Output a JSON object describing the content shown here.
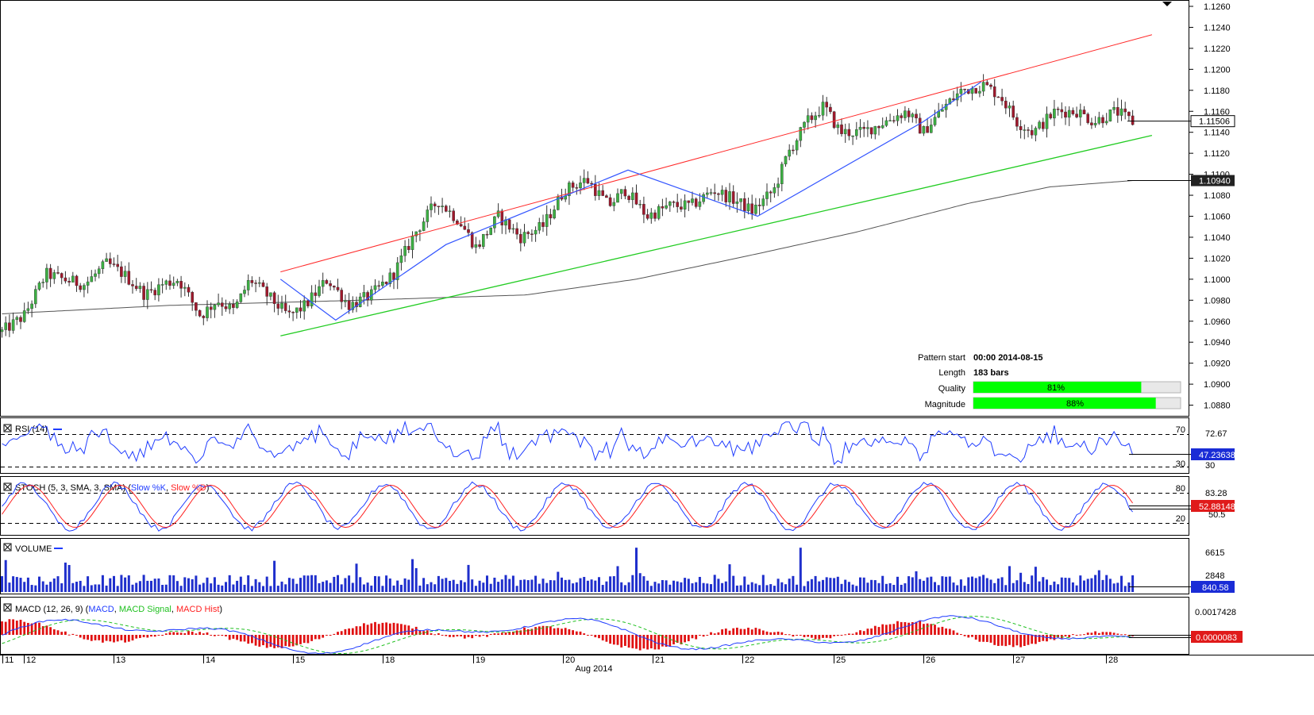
{
  "chart_data": {
    "type": "candlestick",
    "main_panel": {
      "y_ticks": [
        "1.1260",
        "1.1240",
        "1.1220",
        "1.1200",
        "1.1180",
        "1.1160",
        "1.1140",
        "1.1120",
        "1.1100",
        "1.1080",
        "1.1060",
        "1.1040",
        "1.1020",
        "1.1000",
        "1.0980",
        "1.0960",
        "1.0940",
        "1.0920",
        "1.0900",
        "1.0880"
      ],
      "y_range": [
        1.087,
        1.1265
      ],
      "last_price": "1.11506",
      "ma_price": "1.10940",
      "close_path": [
        [
          0,
          1.095
        ],
        [
          8,
          1.0965
        ],
        [
          16,
          1.1005
        ],
        [
          22,
          1.1
        ],
        [
          30,
          1.0995
        ],
        [
          38,
          1.1015
        ],
        [
          44,
          1.1005
        ],
        [
          52,
          1.0985
        ],
        [
          58,
          1.0995
        ],
        [
          64,
          1.1
        ],
        [
          72,
          1.0965
        ],
        [
          78,
          1.098
        ],
        [
          84,
          1.097
        ],
        [
          90,
          1.1
        ],
        [
          96,
          1.0985
        ],
        [
          104,
          1.0965
        ],
        [
          110,
          1.0975
        ],
        [
          118,
          1.1
        ],
        [
          126,
          1.0975
        ],
        [
          134,
          1.0985
        ],
        [
          142,
          1.1005
        ],
        [
          150,
          1.1045
        ],
        [
          158,
          1.1075
        ],
        [
          166,
          1.1055
        ],
        [
          172,
          1.103
        ],
        [
          180,
          1.106
        ],
        [
          188,
          1.104
        ],
        [
          196,
          1.105
        ],
        [
          204,
          1.1085
        ],
        [
          212,
          1.1095
        ],
        [
          220,
          1.107
        ],
        [
          226,
          1.1085
        ],
        [
          234,
          1.106
        ],
        [
          242,
          1.107
        ],
        [
          250,
          1.107
        ],
        [
          258,
          1.1085
        ],
        [
          266,
          1.1075
        ],
        [
          272,
          1.1065
        ],
        [
          280,
          1.1085
        ],
        [
          285,
          1.112
        ],
        [
          292,
          1.115
        ],
        [
          298,
          1.1165
        ],
        [
          304,
          1.114
        ],
        [
          312,
          1.114
        ],
        [
          320,
          1.115
        ],
        [
          328,
          1.116
        ],
        [
          334,
          1.114
        ],
        [
          342,
          1.1165
        ],
        [
          348,
          1.118
        ],
        [
          356,
          1.1185
        ],
        [
          362,
          1.1175
        ],
        [
          368,
          1.115
        ],
        [
          374,
          1.114
        ],
        [
          382,
          1.116
        ],
        [
          390,
          1.116
        ],
        [
          396,
          1.115
        ],
        [
          404,
          1.116
        ],
        [
          410,
          1.115
        ]
      ],
      "sma": [
        [
          0,
          1.0967
        ],
        [
          60,
          1.0975
        ],
        [
          130,
          1.098
        ],
        [
          190,
          1.0985
        ],
        [
          230,
          1.1
        ],
        [
          270,
          1.1022
        ],
        [
          310,
          1.1045
        ],
        [
          350,
          1.1072
        ],
        [
          380,
          1.1088
        ],
        [
          410,
          1.1094
        ]
      ],
      "channel_upper": [
        [
          101,
          1.1007
        ],
        [
          417,
          1.1233
        ]
      ],
      "channel_lower": [
        [
          101,
          1.0946
        ],
        [
          417,
          1.1137
        ]
      ],
      "zigzag": [
        [
          101,
          1.1
        ],
        [
          121,
          1.0961
        ],
        [
          161,
          1.1033
        ],
        [
          227,
          1.1104
        ],
        [
          274,
          1.106
        ],
        [
          334,
          1.115
        ],
        [
          355,
          1.1188
        ]
      ]
    },
    "pattern_info": {
      "pattern_start_label": "Pattern start",
      "pattern_start_value": "00:00 2014-08-15",
      "length_label": "Length",
      "length_value": "183 bars",
      "quality_label": "Quality",
      "quality_value": 81,
      "quality_text": "81%",
      "magnitude_label": "Magnitude",
      "magnitude_value": 88,
      "magnitude_text": "88%"
    },
    "rsi": {
      "label": "RSI (14)",
      "levels": [
        "70",
        "30"
      ],
      "ticks": [
        "72.67",
        "30"
      ],
      "last": "47.23638",
      "range": [
        20,
        80
      ]
    },
    "stoch": {
      "label_prefix": "STOCH (5, 3, SMA, 3, SMA)",
      "label_k": "Slow %K",
      "label_d": "Slow %D",
      "levels": [
        "80",
        "20"
      ],
      "ticks": [
        "83.28",
        "50.5"
      ],
      "last": "52.88148",
      "range": [
        0,
        100
      ]
    },
    "volume": {
      "label": "VOLUME",
      "ticks": [
        "6615",
        "2848"
      ],
      "last": "840.58",
      "range": [
        0,
        7200
      ]
    },
    "macd": {
      "label_prefix": "MACD (12, 26, 9)",
      "label_macd": "MACD",
      "label_signal": "MACD Signal",
      "label_hist": "MACD Hist",
      "ticks": [
        "0.0017428"
      ],
      "last": "0.0000083",
      "range": [
        -0.0012,
        0.0021
      ]
    },
    "x_axis": {
      "ticks": [
        {
          "bar": 0,
          "label": "11"
        },
        {
          "bar": 4,
          "label": "12"
        },
        {
          "bar": 28,
          "label": "13"
        },
        {
          "bar": 52,
          "label": "14"
        },
        {
          "bar": 76,
          "label": "15"
        },
        {
          "bar": 100,
          "label": "18"
        },
        {
          "bar": 124,
          "label": "19"
        },
        {
          "bar": 148,
          "label": "20"
        },
        {
          "bar": 172,
          "label": "21"
        },
        {
          "bar": 196,
          "label": "22"
        },
        {
          "bar": 220,
          "label": "25"
        },
        {
          "bar": 244,
          "label": "26"
        },
        {
          "bar": 268,
          "label": "27"
        },
        {
          "bar": 292,
          "label": "28"
        }
      ],
      "month_label": "Aug 2014"
    },
    "colors": {
      "up": "#3cb043",
      "down": "#a0182c",
      "channel_upper": "#ff2a2a",
      "channel_lower": "#22cc22",
      "zigzag": "#3355ff",
      "sma": "#555555",
      "indicator_blue": "#1f3cff",
      "indicator_red": "#ff2020",
      "indicator_green": "#20c020",
      "volume": "#1f2fcc",
      "hist": "#e01010",
      "tag_blue": "#1a2cd6",
      "tag_red": "#e01a1a",
      "quality_fill": "#00ff00"
    }
  }
}
